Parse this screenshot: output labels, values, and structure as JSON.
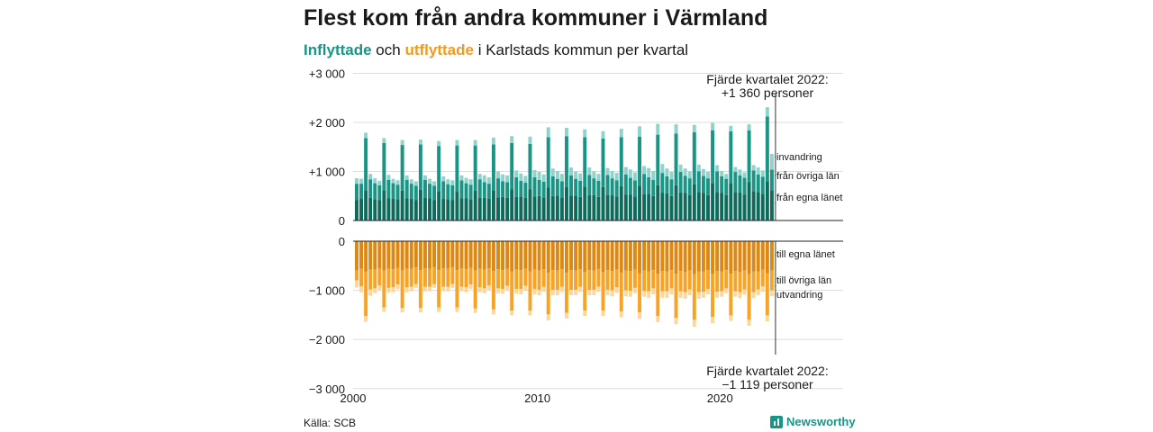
{
  "title": "Flest kom från andra kommuner i Värmland",
  "subtitle": {
    "in_word": "Inflyttade",
    "and_word": "och",
    "out_word": "utflyttade",
    "rest": "i Karlstads kommun per kvartal"
  },
  "source": "Källa: SCB",
  "brand": "Newsworthy",
  "chart_data": {
    "type": "bar",
    "stacked": true,
    "x_start": "2000 Q1",
    "x_end": "2022 Q4",
    "xticks": [
      "2000",
      "2010",
      "2020"
    ],
    "yticks_top": [
      "+3 000",
      "+2 000",
      "+1 000",
      "0"
    ],
    "yticks_bottom": [
      "0",
      "−1 000",
      "−2 000",
      "−3 000"
    ],
    "ylim_top": [
      0,
      3000
    ],
    "ylim_bottom": [
      -3000,
      0
    ],
    "grid": true,
    "colors": {
      "in_county": "#0e6b5c",
      "in_other": "#1a9484",
      "in_abroad": "#8fd3cb",
      "out_county": "#de8814",
      "out_other": "#f7a326",
      "out_abroad": "#fbd79b"
    },
    "series": [
      {
        "name": "från egna länet",
        "group": "in"
      },
      {
        "name": "från övriga län",
        "group": "in"
      },
      {
        "name": "invandring",
        "group": "in"
      },
      {
        "name": "till egna länet",
        "group": "out"
      },
      {
        "name": "till övriga län",
        "group": "out"
      },
      {
        "name": "utvandring",
        "group": "out"
      }
    ],
    "annotations": {
      "top": [
        "Fjärde kvartalet 2022:",
        "+1 360 personer"
      ],
      "bottom": [
        "Fjärde kvartalet 2022:",
        "−1 119 personer"
      ]
    },
    "years": [
      2000,
      2001,
      2002,
      2003,
      2004,
      2005,
      2006,
      2007,
      2008,
      2009,
      2010,
      2011,
      2012,
      2013,
      2014,
      2015,
      2016,
      2017,
      2018,
      2019,
      2020,
      2021,
      2022
    ],
    "in_county": [
      [
        420,
        440,
        620,
        460
      ],
      [
        430,
        420,
        620,
        450
      ],
      [
        440,
        430,
        610,
        450
      ],
      [
        440,
        420,
        630,
        460
      ],
      [
        450,
        420,
        600,
        440
      ],
      [
        430,
        420,
        600,
        450
      ],
      [
        450,
        430,
        610,
        460
      ],
      [
        460,
        440,
        620,
        470
      ],
      [
        480,
        460,
        640,
        480
      ],
      [
        490,
        460,
        640,
        490
      ],
      [
        500,
        470,
        670,
        500
      ],
      [
        510,
        470,
        680,
        510
      ],
      [
        510,
        480,
        690,
        520
      ],
      [
        520,
        480,
        680,
        520
      ],
      [
        520,
        490,
        700,
        530
      ],
      [
        530,
        490,
        710,
        540
      ],
      [
        540,
        500,
        720,
        560
      ],
      [
        550,
        500,
        720,
        570
      ],
      [
        560,
        520,
        740,
        580
      ],
      [
        560,
        520,
        760,
        580
      ],
      [
        560,
        520,
        760,
        580
      ],
      [
        570,
        530,
        780,
        600
      ],
      [
        580,
        540,
        800,
        620
      ]
    ],
    "in_other": [
      [
        330,
        310,
        1060,
        380
      ],
      [
        330,
        300,
        960,
        380
      ],
      [
        320,
        300,
        930,
        380
      ],
      [
        310,
        290,
        920,
        370
      ],
      [
        300,
        290,
        920,
        360
      ],
      [
        310,
        300,
        930,
        370
      ],
      [
        310,
        300,
        920,
        380
      ],
      [
        320,
        310,
        930,
        390
      ],
      [
        320,
        320,
        940,
        400
      ],
      [
        320,
        310,
        920,
        390
      ],
      [
        330,
        320,
        1030,
        400
      ],
      [
        340,
        330,
        1040,
        410
      ],
      [
        340,
        330,
        1010,
        410
      ],
      [
        340,
        330,
        990,
        410
      ],
      [
        340,
        330,
        1000,
        410
      ],
      [
        340,
        330,
        1000,
        410
      ],
      [
        340,
        330,
        1030,
        410
      ],
      [
        350,
        340,
        1050,
        420
      ],
      [
        350,
        340,
        1060,
        420
      ],
      [
        350,
        340,
        1080,
        420
      ],
      [
        340,
        330,
        1060,
        410
      ],
      [
        350,
        340,
        1060,
        420
      ],
      [
        360,
        350,
        1320,
        420
      ]
    ],
    "in_abroad": [
      [
        110,
        100,
        110,
        110
      ],
      [
        100,
        90,
        100,
        100
      ],
      [
        90,
        90,
        100,
        90
      ],
      [
        90,
        90,
        100,
        90
      ],
      [
        100,
        90,
        100,
        100
      ],
      [
        100,
        100,
        110,
        100
      ],
      [
        110,
        110,
        110,
        110
      ],
      [
        140,
        130,
        140,
        140
      ],
      [
        140,
        140,
        140,
        140
      ],
      [
        150,
        140,
        150,
        150
      ],
      [
        160,
        150,
        200,
        160
      ],
      [
        160,
        150,
        170,
        160
      ],
      [
        150,
        150,
        160,
        150
      ],
      [
        140,
        140,
        150,
        140
      ],
      [
        150,
        150,
        170,
        150
      ],
      [
        170,
        160,
        210,
        160
      ],
      [
        190,
        180,
        220,
        180
      ],
      [
        160,
        150,
        190,
        150
      ],
      [
        150,
        140,
        150,
        140
      ],
      [
        140,
        130,
        150,
        130
      ],
      [
        110,
        100,
        110,
        100
      ],
      [
        120,
        110,
        120,
        110
      ],
      [
        140,
        130,
        190,
        320
      ]
    ],
    "out_county": [
      [
        -600,
        -560,
        -620,
        -580
      ],
      [
        -580,
        -550,
        -600,
        -560
      ],
      [
        -570,
        -540,
        -600,
        -560
      ],
      [
        -560,
        -530,
        -590,
        -550
      ],
      [
        -560,
        -530,
        -590,
        -550
      ],
      [
        -560,
        -530,
        -590,
        -550
      ],
      [
        -570,
        -540,
        -600,
        -560
      ],
      [
        -580,
        -550,
        -610,
        -570
      ],
      [
        -590,
        -560,
        -620,
        -580
      ],
      [
        -590,
        -560,
        -620,
        -580
      ],
      [
        -600,
        -570,
        -640,
        -590
      ],
      [
        -600,
        -570,
        -640,
        -590
      ],
      [
        -600,
        -570,
        -630,
        -590
      ],
      [
        -600,
        -570,
        -630,
        -590
      ],
      [
        -610,
        -580,
        -640,
        -600
      ],
      [
        -610,
        -580,
        -650,
        -600
      ],
      [
        -620,
        -590,
        -660,
        -610
      ],
      [
        -620,
        -590,
        -660,
        -610
      ],
      [
        -630,
        -600,
        -670,
        -620
      ],
      [
        -620,
        -590,
        -660,
        -610
      ],
      [
        -620,
        -590,
        -660,
        -610
      ],
      [
        -630,
        -600,
        -670,
        -620
      ],
      [
        -620,
        -580,
        -650,
        -600
      ]
    ],
    "out_other": [
      [
        -200,
        -360,
        -900,
        -400
      ],
      [
        -380,
        -350,
        -750,
        -390
      ],
      [
        -370,
        -340,
        -760,
        -380
      ],
      [
        -370,
        -340,
        -770,
        -380
      ],
      [
        -370,
        -340,
        -760,
        -380
      ],
      [
        -370,
        -340,
        -760,
        -380
      ],
      [
        -370,
        -340,
        -770,
        -380
      ],
      [
        -380,
        -350,
        -780,
        -390
      ],
      [
        -380,
        -350,
        -790,
        -390
      ],
      [
        -380,
        -350,
        -790,
        -390
      ],
      [
        -390,
        -360,
        -850,
        -400
      ],
      [
        -390,
        -360,
        -820,
        -400
      ],
      [
        -390,
        -360,
        -780,
        -400
      ],
      [
        -390,
        -360,
        -780,
        -400
      ],
      [
        -390,
        -360,
        -790,
        -400
      ],
      [
        -400,
        -370,
        -800,
        -410
      ],
      [
        -400,
        -370,
        -860,
        -410
      ],
      [
        -400,
        -370,
        -900,
        -410
      ],
      [
        -410,
        -380,
        -930,
        -420
      ],
      [
        -410,
        -380,
        -880,
        -420
      ],
      [
        -400,
        -370,
        -850,
        -410
      ],
      [
        -410,
        -380,
        -930,
        -420
      ],
      [
        -360,
        -340,
        -860,
        -400
      ]
    ],
    "out_abroad": [
      [
        -140,
        -120,
        -120,
        -130
      ],
      [
        -100,
        -90,
        -90,
        -100
      ],
      [
        -100,
        -90,
        -90,
        -100
      ],
      [
        -90,
        -80,
        -90,
        -90
      ],
      [
        -90,
        -80,
        -90,
        -90
      ],
      [
        -90,
        -80,
        -90,
        -90
      ],
      [
        -100,
        -90,
        -90,
        -100
      ],
      [
        -100,
        -90,
        -100,
        -100
      ],
      [
        -100,
        -90,
        -100,
        -100
      ],
      [
        -110,
        -100,
        -100,
        -110
      ],
      [
        -110,
        -100,
        -120,
        -110
      ],
      [
        -110,
        -100,
        -110,
        -110
      ],
      [
        -110,
        -100,
        -110,
        -110
      ],
      [
        -110,
        -100,
        -110,
        -110
      ],
      [
        -120,
        -110,
        -120,
        -120
      ],
      [
        -120,
        -110,
        -130,
        -120
      ],
      [
        -130,
        -120,
        -130,
        -130
      ],
      [
        -130,
        -120,
        -130,
        -130
      ],
      [
        -130,
        -120,
        -140,
        -130
      ],
      [
        -120,
        -110,
        -130,
        -120
      ],
      [
        -110,
        -100,
        -110,
        -110
      ],
      [
        -120,
        -110,
        -120,
        -120
      ],
      [
        -120,
        -110,
        -120,
        -119
      ]
    ]
  }
}
